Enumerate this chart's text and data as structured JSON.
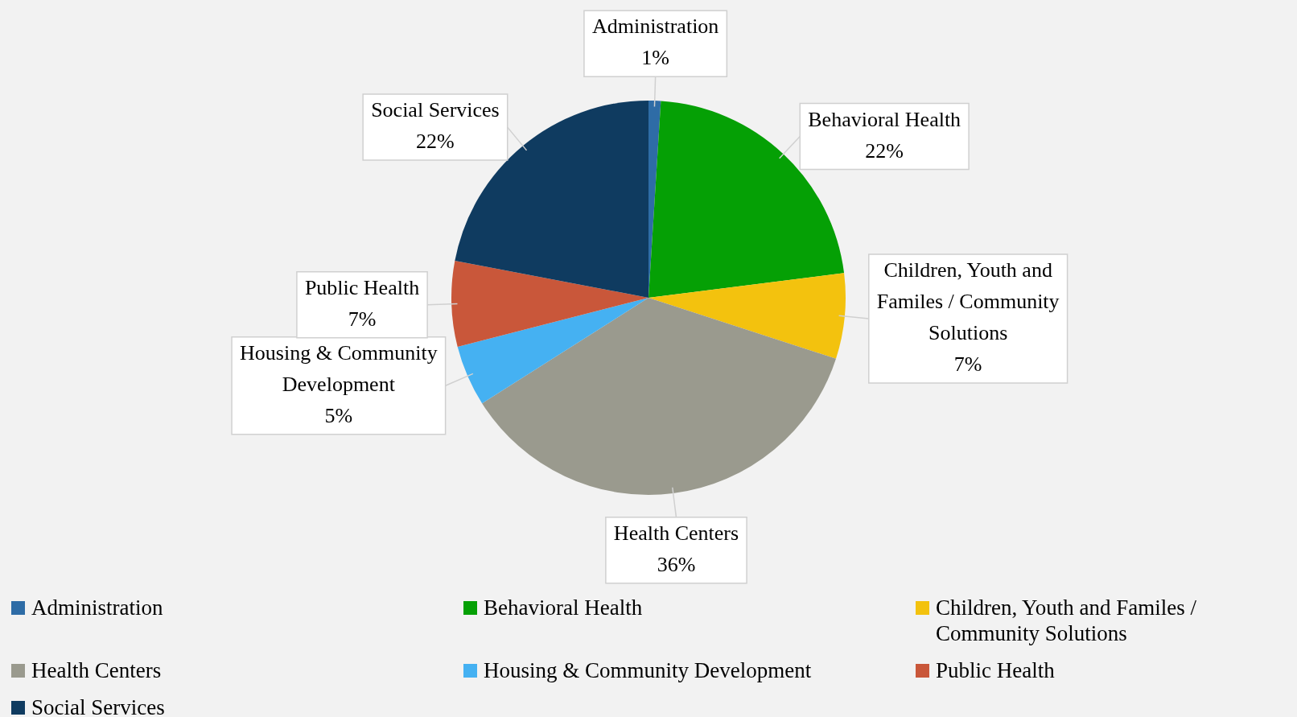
{
  "chart_data": {
    "type": "pie",
    "categories": [
      "Administration",
      "Behavioral Health",
      "Children, Youth and Familes / Community Solutions",
      "Health Centers",
      "Housing & Community Development",
      "Public Health",
      "Social Services"
    ],
    "values": [
      1,
      22,
      7,
      36,
      5,
      7,
      22
    ],
    "colors": [
      "#2e6ca6",
      "#05a005",
      "#f3c20e",
      "#9a9a8e",
      "#45b1f2",
      "#c9573a",
      "#0f3b60"
    ],
    "value_labels": [
      "1%",
      "22%",
      "7%",
      "36%",
      "5%",
      "7%",
      "22%"
    ],
    "legend": "bottom"
  }
}
